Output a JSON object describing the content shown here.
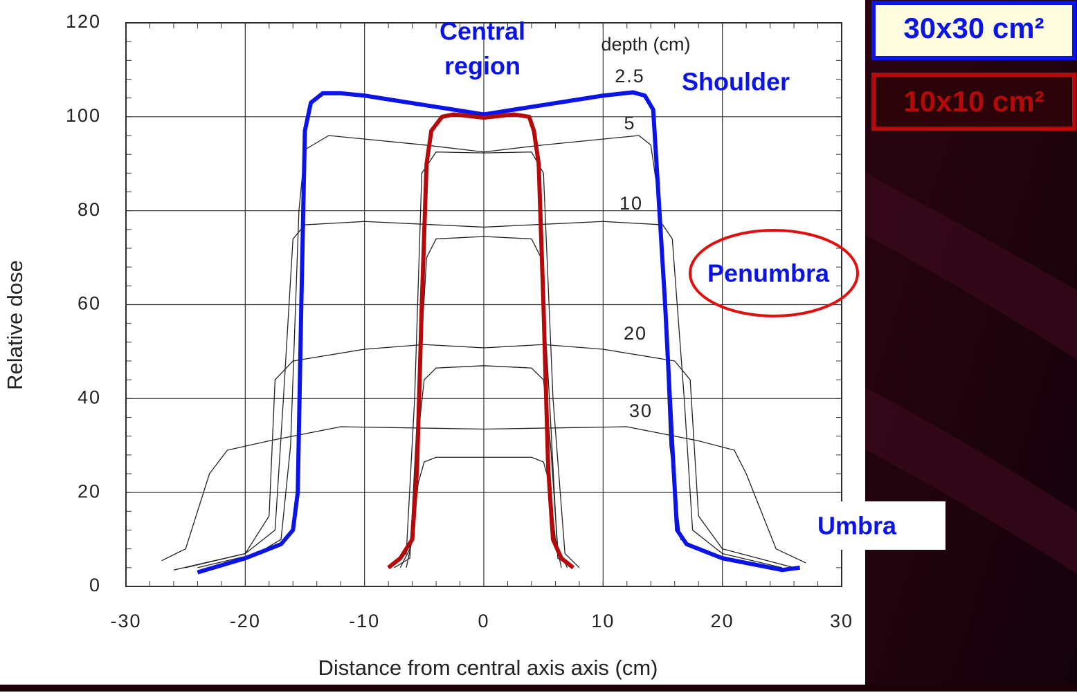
{
  "chart_data": {
    "type": "line",
    "xlabel": "Distance from central axis axis (cm)",
    "ylabel": "Relative dose",
    "xlim": [
      -30,
      30
    ],
    "xticks": [
      -30,
      -20,
      -10,
      0,
      10,
      20,
      30
    ],
    "ylim": [
      0,
      120
    ],
    "yticks": [
      0,
      20,
      40,
      60,
      80,
      100,
      120
    ],
    "grid": true,
    "depth_title": "depth (cm)",
    "depth_labels": [
      "2.5",
      "5",
      "10",
      "20",
      "30"
    ],
    "annotations": {
      "central": [
        "Central",
        "region"
      ],
      "shoulder": "Shoulder",
      "penumbra": "Penumbra",
      "umbra": "Umbra"
    },
    "series": [
      {
        "name": "30x30 cm²",
        "color": "#0a14e6",
        "width": 6,
        "x": [
          -24,
          -20,
          -17,
          -16,
          -15.6,
          -15.3,
          -15,
          -14.5,
          -13.5,
          -12,
          -10,
          0,
          10,
          12.5,
          13.5,
          14.2,
          14.6,
          15.2,
          15.8,
          16.2,
          17,
          20,
          24,
          25,
          26.5
        ],
        "values": [
          3,
          6,
          9,
          12,
          20,
          60,
          97,
          103,
          105,
          105,
          104.5,
          100.5,
          104.5,
          105.2,
          104.5,
          101.5,
          85,
          60,
          30,
          12,
          9,
          6,
          4,
          3.5,
          4
        ]
      },
      {
        "name": "10x10 cm²",
        "color": "#b40a0a",
        "width": 6,
        "x": [
          -8,
          -7,
          -6,
          -5.6,
          -5.2,
          -4.8,
          -4.4,
          -3.5,
          -2.5,
          0,
          2.5,
          3.8,
          4.2,
          4.6,
          5,
          5.4,
          5.8,
          6.5,
          7.5
        ],
        "values": [
          4,
          6,
          10,
          25,
          60,
          90,
          97,
          100,
          100.5,
          99.8,
          100.5,
          100,
          97,
          90,
          60,
          25,
          10,
          6,
          4
        ]
      },
      {
        "color": "#222222",
        "width": 1.3,
        "x": [
          -24,
          -19,
          -17,
          -16.2,
          -15.5,
          -15,
          -13,
          -5,
          0,
          5,
          13,
          14,
          14.8,
          15.6,
          16.5,
          19,
          24
        ],
        "values": [
          4,
          7,
          10,
          30,
          80,
          93,
          96,
          94,
          92.5,
          94,
          96,
          94,
          80,
          30,
          10,
          7,
          4
        ]
      },
      {
        "color": "#222222",
        "width": 1.3,
        "x": [
          -25,
          -20,
          -17.5,
          -16.8,
          -16,
          -15,
          -10,
          0,
          10,
          15,
          15.8,
          16.8,
          17.5,
          20,
          25
        ],
        "values": [
          4,
          7,
          12,
          40,
          74,
          77,
          77.7,
          76.5,
          77.7,
          77,
          74,
          40,
          12,
          7,
          4
        ]
      },
      {
        "color": "#222222",
        "width": 1.3,
        "x": [
          -26,
          -20,
          -18,
          -17.5,
          -16,
          -10,
          -5,
          0,
          5,
          10,
          16,
          17.3,
          18,
          20,
          26
        ],
        "values": [
          3.5,
          7,
          15,
          44,
          48,
          50.5,
          51.5,
          50.8,
          51.5,
          50.5,
          48,
          44,
          15,
          8,
          4
        ]
      },
      {
        "color": "#222222",
        "width": 1.3,
        "x": [
          -27,
          -25,
          -23,
          -21.5,
          -18,
          -12,
          0,
          12,
          18,
          21,
          22,
          24.5,
          27
        ],
        "values": [
          5.5,
          8,
          24,
          29,
          31,
          34,
          33.5,
          34,
          31,
          29,
          24,
          8,
          5
        ]
      },
      {
        "color": "#222222",
        "width": 1.3,
        "x": [
          -8,
          -6.5,
          -5.8,
          -5.2,
          -4,
          0,
          4,
          5,
          5.8,
          6.8,
          8
        ],
        "values": [
          4,
          7,
          40,
          88,
          92.5,
          92.3,
          92.5,
          88,
          40,
          7,
          4
        ]
      },
      {
        "color": "#222222",
        "width": 1.3,
        "x": [
          -7.5,
          -6.2,
          -5.5,
          -4.8,
          -4,
          0,
          4,
          4.8,
          5.5,
          6.2,
          7.5
        ],
        "values": [
          4,
          6,
          40,
          70,
          74,
          74.5,
          74,
          70,
          40,
          6,
          4
        ]
      },
      {
        "color": "#222222",
        "width": 1.3,
        "x": [
          -7,
          -6.2,
          -5.6,
          -5,
          -4,
          0,
          4,
          5,
          5.6,
          6.2,
          7
        ],
        "values": [
          4,
          8,
          30,
          44,
          46.5,
          47,
          46.5,
          44,
          30,
          8,
          4
        ]
      },
      {
        "color": "#222222",
        "width": 1.3,
        "x": [
          -6.5,
          -6,
          -5.5,
          -5,
          -4,
          0,
          4,
          5,
          5.5,
          6,
          6.5
        ],
        "values": [
          4,
          10,
          22,
          26.5,
          27.5,
          27.5,
          27.5,
          26.5,
          22,
          10,
          4
        ]
      }
    ]
  }
}
